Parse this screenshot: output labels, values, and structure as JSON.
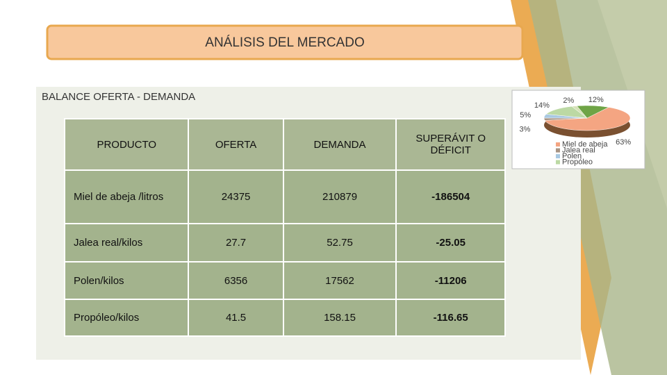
{
  "header": {
    "title": "ANÁLISIS DEL MERCADO"
  },
  "table": {
    "title": "BALANCE OFERTA - DEMANDA",
    "columns": [
      "PRODUCTO",
      "OFERTA",
      "DEMANDA",
      "SUPERÁVIT O DÉFICIT"
    ],
    "rows": [
      [
        "Miel de abeja /litros",
        "24375",
        "210879",
        "-186504"
      ],
      [
        "Jalea real/kilos",
        "27.7",
        "52.75",
        "-25.05"
      ],
      [
        "Polen/kilos",
        "6356",
        "17562",
        "-11206"
      ],
      [
        "Propóleo/kilos",
        "41.5",
        "158.15",
        "-116.65"
      ]
    ]
  },
  "chart_data": {
    "type": "pie",
    "categories": [
      "Miel de abeja",
      "Jalea real",
      "Polen",
      "Propóleo",
      null,
      null
    ],
    "values": [
      63,
      3,
      5,
      14,
      2,
      12
    ],
    "value_labels": [
      "63%",
      "3%",
      "5%",
      "14%",
      "2%",
      "12%"
    ],
    "colors": [
      "#f4a582",
      "#a89584",
      "#a9c9e2",
      "#bcd9a4",
      "#d6e2b8",
      "#6fa446"
    ]
  }
}
